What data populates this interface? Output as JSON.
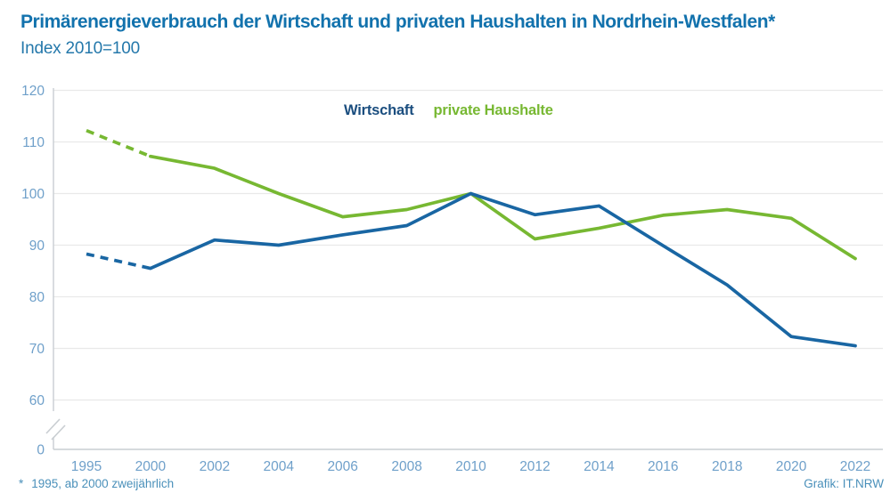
{
  "header": {
    "title": "Primärenergieverbrauch der Wirtschaft und privaten Haushalten in Nordrhein-Westfalen*",
    "subtitle": "Index 2010=100"
  },
  "footer": {
    "footnote_mark": "*",
    "footnote": "1995, ab 2000 zweijährlich",
    "credit": "Grafik: IT.NRW"
  },
  "chart_data": {
    "type": "line",
    "title": "Primärenergieverbrauch der Wirtschaft und privaten Haushalten in Nordrhein-Westfalen*",
    "subtitle": "Index 2010=100",
    "xlabel": "",
    "ylabel": "",
    "categories": [
      "1995",
      "2000",
      "2002",
      "2004",
      "2006",
      "2008",
      "2010",
      "2012",
      "2014",
      "2016",
      "2018",
      "2020",
      "2022"
    ],
    "series": [
      {
        "name": "Wirtschaft",
        "color": "#1966a3",
        "legend_color": "#1b4e7f",
        "dashed_until_index": 1,
        "values": [
          88.3,
          85.5,
          91.0,
          90.0,
          92.0,
          93.8,
          100.0,
          95.9,
          97.6,
          89.9,
          82.3,
          72.3,
          70.5
        ]
      },
      {
        "name": "private Haushalte",
        "color": "#77b832",
        "legend_color": "#77b832",
        "dashed_until_index": 1,
        "values": [
          112.2,
          107.2,
          104.9,
          100.0,
          95.5,
          96.9,
          100.0,
          91.2,
          93.3,
          95.8,
          96.9,
          95.2,
          87.4
        ]
      }
    ],
    "yticks": [
      120,
      110,
      100,
      90,
      80,
      70,
      60,
      0
    ],
    "ylim": [
      0,
      120
    ],
    "axis_break_between": [
      0,
      60
    ],
    "grid": true,
    "legend_position": "top-center",
    "note": "1995, ab 2000 zweijährlich",
    "colors": {
      "grid": "#e9e9e9",
      "axis": "#c9ced2",
      "tick": "#6fa0ca",
      "title": "#1272ad"
    }
  }
}
